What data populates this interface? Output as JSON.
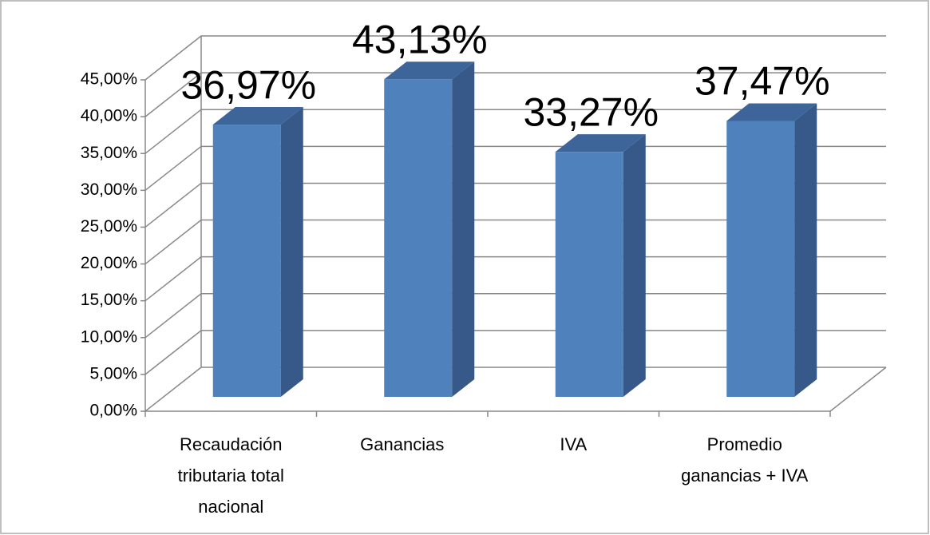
{
  "chart_data": {
    "type": "bar3d",
    "categories": [
      "Recaudación tributaria total nacional",
      "Ganancias",
      "IVA",
      "Promedio ganancias + IVA"
    ],
    "values": [
      36.97,
      43.13,
      33.27,
      37.47
    ],
    "value_labels": [
      "36,97%",
      "43,13%",
      "33,27%",
      "37,47%"
    ],
    "color": "#4f81bd",
    "ylim": [
      0,
      45
    ],
    "yticks": [
      {
        "value": 0,
        "label": "0,00%"
      },
      {
        "value": 5,
        "label": "5,00%"
      },
      {
        "value": 10,
        "label": "10,00%"
      },
      {
        "value": 15,
        "label": "15,00%"
      },
      {
        "value": 20,
        "label": "20,00%"
      },
      {
        "value": 25,
        "label": "25,00%"
      },
      {
        "value": 30,
        "label": "30,00%"
      },
      {
        "value": 35,
        "label": "35,00%"
      },
      {
        "value": 40,
        "label": "40,00%"
      },
      {
        "value": 45,
        "label": "45,00%"
      }
    ],
    "grid": true
  }
}
